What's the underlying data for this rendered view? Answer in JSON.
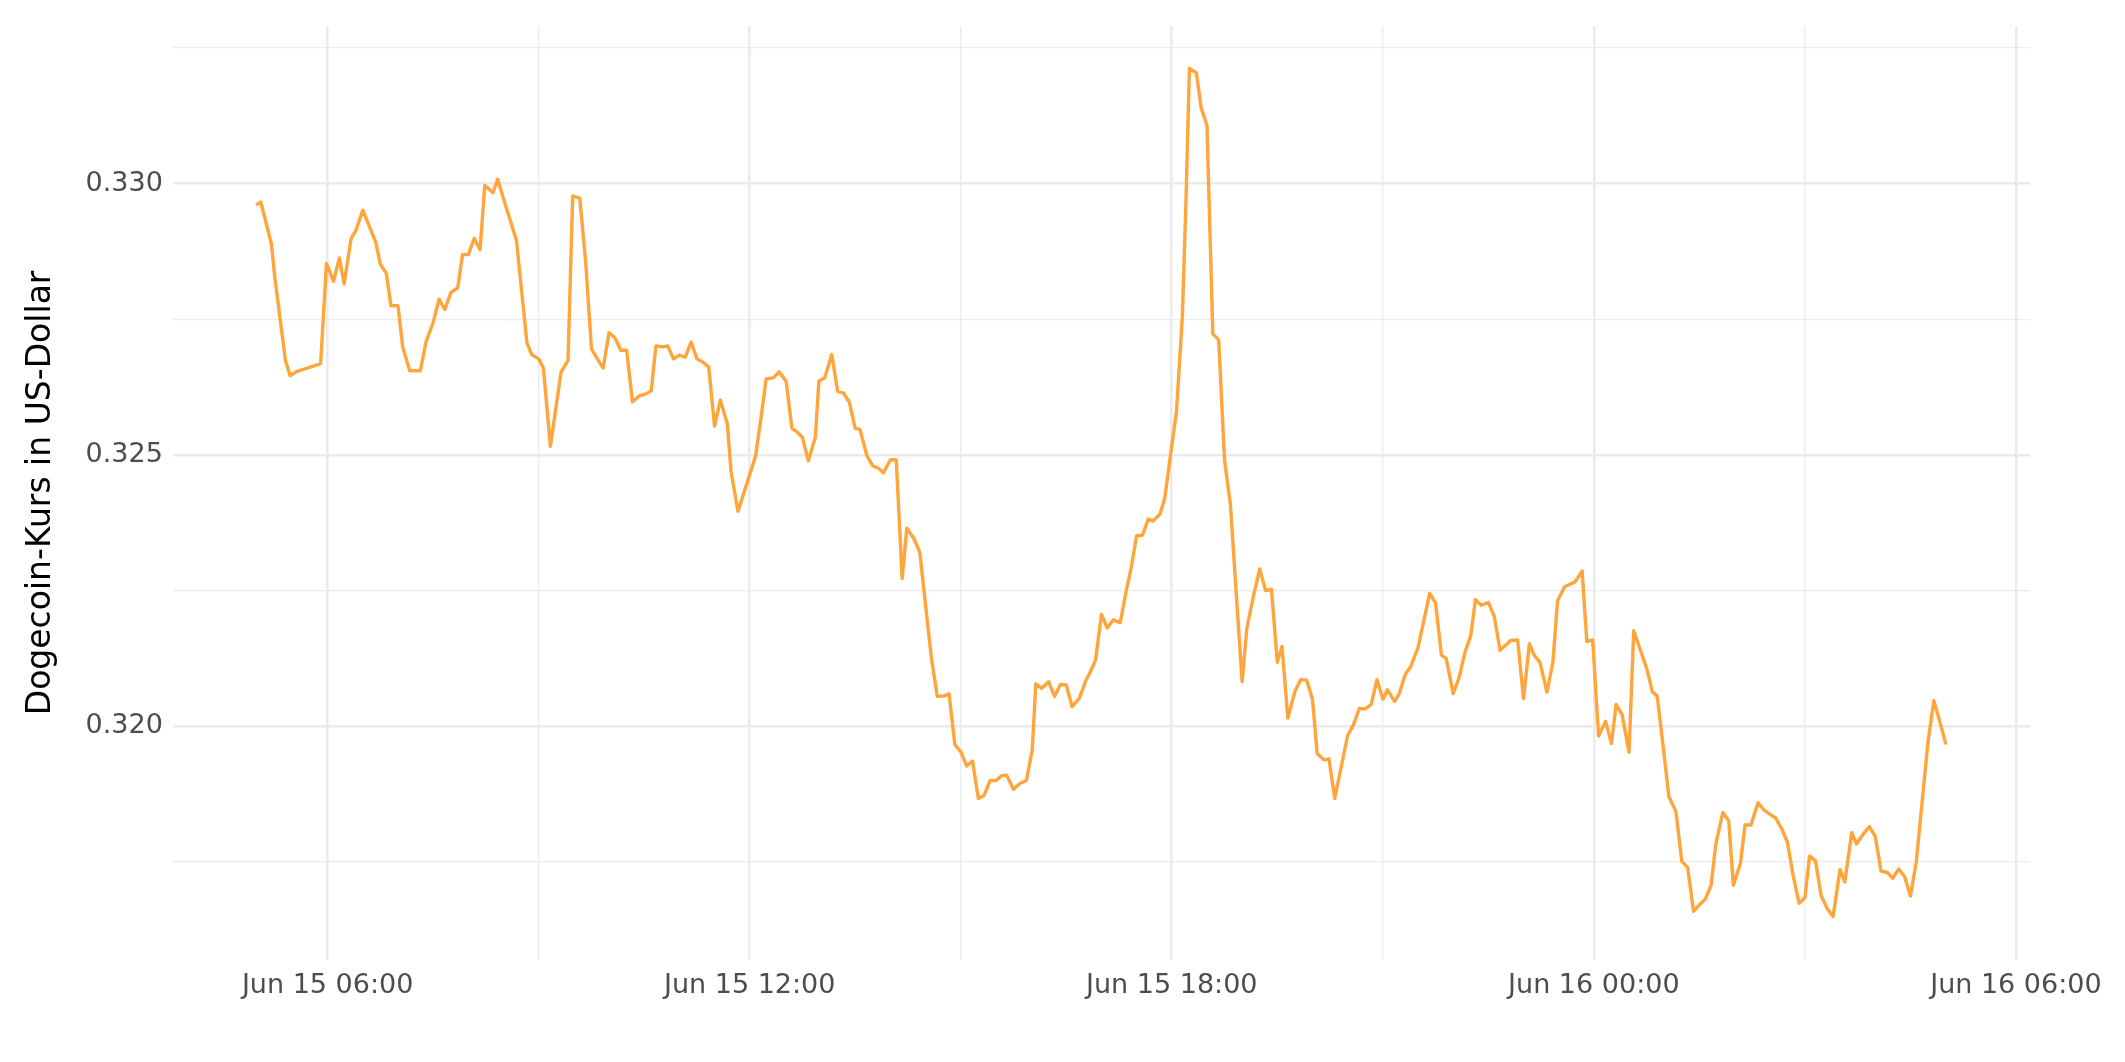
{
  "chart_data": {
    "type": "line",
    "ylabel": "Dogecoin-Kurs in US-Dollar",
    "color": "#ffa53b",
    "marker": "none",
    "line_style": "solid",
    "grid": true,
    "xlim": [
      "--06-15T03:48",
      "--06-16T06:12"
    ],
    "xticks": [
      {
        "value": "--06-15T06:00",
        "label": "Jun 15 06:00"
      },
      {
        "value": "--06-15T09:00",
        "label": null
      },
      {
        "value": "--06-15T12:00",
        "label": "Jun 15 12:00"
      },
      {
        "value": "--06-15T15:00",
        "label": null
      },
      {
        "value": "--06-15T18:00",
        "label": "Jun 15 18:00"
      },
      {
        "value": "--06-15T21:00",
        "label": null
      },
      {
        "value": "--06-16T00:00",
        "label": "Jun 16 00:00"
      },
      {
        "value": "--06-16T03:00",
        "label": null
      },
      {
        "value": "--06-16T06:00",
        "label": "Jun 16 06:00"
      }
    ],
    "ylim": [
      0.3157,
      0.3329
    ],
    "yticks": [
      {
        "value": 0.3175,
        "label": null
      },
      {
        "value": 0.32,
        "label": "0.320"
      },
      {
        "value": 0.3225,
        "label": null
      },
      0.325,
      {
        "value": 0.3275,
        "label": null
      },
      {
        "value": 0.33,
        "label": "0.330"
      },
      {
        "value": 0.3325,
        "label": null
      }
    ],
    "x": [
      "--06-15T05:00",
      "--06-15T05:03",
      "--06-15T05:12",
      "--06-15T05:15",
      "--06-15T05:24",
      "--06-15T05:28",
      "--06-15T05:34",
      "--06-15T05:54",
      "--06-15T05:59",
      "--06-15T06:05",
      "--06-15T06:10",
      "--06-15T06:14",
      "--06-15T06:20",
      "--06-15T06:24",
      "--06-15T06:30",
      "--06-15T06:35",
      "--06-15T06:41",
      "--06-15T06:45",
      "--06-15T06:50",
      "--06-15T06:54",
      "--06-15T07:00",
      "--06-15T07:04",
      "--06-15T07:10",
      "--06-15T07:19",
      "--06-15T07:24",
      "--06-15T07:30",
      "--06-15T07:35",
      "--06-15T07:40",
      "--06-15T07:45",
      "--06-15T07:51",
      "--06-15T07:55",
      "--06-15T08:00",
      "--06-15T08:05",
      "--06-15T08:10",
      "--06-15T08:14",
      "--06-15T08:21",
      "--06-15T08:25",
      "--06-15T08:33",
      "--06-15T08:41",
      "--06-15T08:50",
      "--06-15T08:54",
      "--06-15T09:00",
      "--06-15T09:04",
      "--06-15T09:10",
      "--06-15T09:19",
      "--06-15T09:25",
      "--06-15T09:29",
      "--06-15T09:35",
      "--06-15T09:40",
      "--06-15T09:45",
      "--06-15T09:50",
      "--06-15T09:55",
      "--06-15T10:00",
      "--06-15T10:05",
      "--06-15T10:10",
      "--06-15T10:15",
      "--06-15T10:20",
      "--06-15T10:26",
      "--06-15T10:31",
      "--06-15T10:36",
      "--06-15T10:40",
      "--06-15T10:46",
      "--06-15T10:50",
      "--06-15T10:55",
      "--06-15T11:00",
      "--06-15T11:05",
      "--06-15T11:10",
      "--06-15T11:15",
      "--06-15T11:20",
      "--06-15T11:25",
      "--06-15T11:30",
      "--06-15T11:35",
      "--06-15T11:41",
      "--06-15T11:44",
      "--06-15T11:50",
      "--06-15T12:05",
      "--06-15T12:10",
      "--06-15T12:14",
      "--06-15T12:20",
      "--06-15T12:25",
      "--06-15T12:31",
      "--06-15T12:36",
      "--06-15T12:40",
      "--06-15T12:45",
      "--06-15T12:50",
      "--06-15T12:56",
      "--06-15T12:59",
      "--06-15T13:04",
      "--06-15T13:10",
      "--06-15T13:15",
      "--06-15T13:20",
      "--06-15T13:25",
      "--06-15T13:30",
      "--06-15T13:34",
      "--06-15T13:40",
      "--06-15T13:45",
      "--06-15T13:50",
      "--06-15T13:54",
      "--06-15T14:00",
      "--06-15T14:05",
      "--06-15T14:10",
      "--06-15T14:14",
      "--06-15T14:20",
      "--06-15T14:25",
      "--06-15T14:35",
      "--06-15T14:40",
      "--06-15T14:46",
      "--06-15T14:50",
      "--06-15T14:55",
      "--06-15T15:00",
      "--06-15T15:05",
      "--06-15T15:10",
      "--06-15T15:15",
      "--06-15T15:20",
      "--06-15T15:25",
      "--06-15T15:30",
      "--06-15T15:35",
      "--06-15T15:39",
      "--06-15T15:45",
      "--06-15T15:50",
      "--06-15T15:56",
      "--06-15T16:01",
      "--06-15T16:04",
      "--06-15T16:09",
      "--06-15T16:15",
      "--06-15T16:20",
      "--06-15T16:25",
      "--06-15T16:30",
      "--06-15T16:35",
      "--06-15T16:41",
      "--06-15T16:47",
      "--06-15T16:49",
      "--06-15T16:55",
      "--06-15T17:00",
      "--06-15T17:05",
      "--06-15T17:10",
      "--06-15T17:16",
      "--06-15T17:21",
      "--06-15T17:25",
      "--06-15T17:30",
      "--06-15T17:35",
      "--06-15T17:40",
      "--06-15T17:44",
      "--06-15T17:50",
      "--06-15T17:54",
      "--06-15T17:58",
      "--06-15T18:04",
      "--06-15T18:09",
      "--06-15T18:12",
      "--06-15T18:15",
      "--06-15T18:21",
      "--06-15T18:25",
      "--06-15T18:30",
      "--06-15T18:35",
      "--06-15T18:40",
      "--06-15T18:45",
      "--06-15T18:50",
      "--06-15T18:55",
      "--06-15T19:00",
      "--06-15T19:04",
      "--06-15T19:10",
      "--06-15T19:15",
      "--06-15T19:20",
      "--06-15T19:25",
      "--06-15T19:30",
      "--06-15T19:34",
      "--06-15T19:39",
      "--06-15T19:45",
      "--06-15T19:50",
      "--06-15T19:55",
      "--06-15T20:00",
      "--06-15T20:04",
      "--06-15T20:10",
      "--06-15T20:14",
      "--06-15T20:19",
      "--06-15T20:30",
      "--06-15T20:35",
      "--06-15T20:40",
      "--06-15T20:45",
      "--06-15T20:50",
      "--06-15T20:55",
      "--06-15T21:00",
      "--06-15T21:04",
      "--06-15T21:10",
      "--06-15T21:14",
      "--06-15T21:19",
      "--06-15T21:24",
      "--06-15T21:30",
      "--06-15T21:34",
      "--06-15T21:40",
      "--06-15T21:45",
      "--06-15T21:50",
      "--06-15T21:54",
      "--06-15T22:00",
      "--06-15T22:05",
      "--06-15T22:10",
      "--06-15T22:15",
      "--06-15T22:19",
      "--06-15T22:24",
      "--06-15T22:30",
      "--06-15T22:35",
      "--06-15T22:40",
      "--06-15T22:47",
      "--06-15T22:49",
      "--06-15T22:55",
      "--06-15T23:00",
      "--06-15T23:05",
      "--06-15T23:09",
      "--06-15T23:14",
      "--06-15T23:20",
      "--06-15T23:25",
      "--06-15T23:29",
      "--06-15T23:35",
      "--06-15T23:44",
      "--06-15T23:50",
      "--06-15T23:54",
      "--06-15T23:59",
      "--06-16T00:04",
      "--06-16T00:10",
      "--06-16T00:15",
      "--06-16T00:19",
      "--06-16T00:24",
      "--06-16T00:30",
      "--06-16T00:34",
      "--06-16T00:45",
      "--06-16T00:50",
      "--06-16T00:54",
      "--06-16T00:59",
      "--06-16T01:04",
      "--06-16T01:10",
      "--06-16T01:15",
      "--06-16T01:20",
      "--06-16T01:25",
      "--06-16T01:30",
      "--06-16T01:35",
      "--06-16T01:40",
      "--06-16T01:44",
      "--06-16T01:50",
      "--06-16T01:55",
      "--06-16T01:59",
      "--06-16T02:05",
      "--06-16T02:09",
      "--06-16T02:14",
      "--06-16T02:20",
      "--06-16T02:25",
      "--06-16T02:30",
      "--06-16T02:35",
      "--06-16T02:40",
      "--06-16T02:45",
      "--06-16T02:50",
      "--06-16T02:55",
      "--06-16T03:00",
      "--06-16T03:04",
      "--06-16T03:09",
      "--06-16T03:14",
      "--06-16T03:19",
      "--06-16T03:24",
      "--06-16T03:30",
      "--06-16T03:34",
      "--06-16T03:40",
      "--06-16T03:44",
      "--06-16T03:50",
      "--06-16T03:55",
      "--06-16T04:00",
      "--06-16T04:05",
      "--06-16T04:10",
      "--06-16T04:15",
      "--06-16T04:20",
      "--06-16T04:25",
      "--06-16T04:30",
      "--06-16T04:35",
      "--06-16T04:41",
      "--06-16T04:45",
      "--06-16T04:50",
      "--06-16T04:55",
      "--06-16T05:00"
    ],
    "values": [
      0.32962,
      0.32966,
      0.32889,
      0.32826,
      0.32674,
      0.32646,
      0.32654,
      0.32668,
      0.32853,
      0.3282,
      0.32863,
      0.32815,
      0.32899,
      0.32913,
      0.32951,
      0.32924,
      0.32892,
      0.32851,
      0.32835,
      0.32775,
      0.32775,
      0.32699,
      0.32655,
      0.32655,
      0.32709,
      0.32744,
      0.32787,
      0.32768,
      0.32799,
      0.32808,
      0.32869,
      0.32869,
      0.32899,
      0.32878,
      0.32997,
      0.32983,
      0.33008,
      0.32951,
      0.32896,
      0.32706,
      0.32685,
      0.32677,
      0.3266,
      0.32516,
      0.32652,
      0.32674,
      0.32977,
      0.32973,
      0.32858,
      0.32696,
      0.32677,
      0.3266,
      0.32725,
      0.32716,
      0.32693,
      0.32693,
      0.32598,
      0.32609,
      0.32612,
      0.32618,
      0.32701,
      0.32699,
      0.32701,
      0.32677,
      0.32684,
      0.3268,
      0.32708,
      0.32677,
      0.32671,
      0.32662,
      0.32553,
      0.32601,
      0.32556,
      0.3247,
      0.32396,
      0.32498,
      0.32574,
      0.3264,
      0.32642,
      0.32653,
      0.32636,
      0.32549,
      0.32543,
      0.32532,
      0.32489,
      0.32533,
      0.32636,
      0.32642,
      0.32685,
      0.32617,
      0.32614,
      0.32597,
      0.32549,
      0.32547,
      0.32498,
      0.3248,
      0.32475,
      0.32467,
      0.32491,
      0.32491,
      0.32272,
      0.32365,
      0.32346,
      0.32321,
      0.32125,
      0.32055,
      0.32056,
      0.3206,
      0.31966,
      0.31953,
      0.31927,
      0.31936,
      0.31867,
      0.31873,
      0.319,
      0.319,
      0.31909,
      0.3191,
      0.31884,
      0.31894,
      0.319,
      0.31957,
      0.32078,
      0.3207,
      0.32082,
      0.32055,
      0.32077,
      0.32076,
      0.32036,
      0.32051,
      0.32086,
      0.32093,
      0.32122,
      0.32206,
      0.32181,
      0.32196,
      0.32191,
      0.32248,
      0.32288,
      0.32351,
      0.32352,
      0.32382,
      0.32378,
      0.32391,
      0.3242,
      0.32485,
      0.3258,
      0.32754,
      0.3296,
      0.33212,
      0.33204,
      0.3314,
      0.33107,
      0.32723,
      0.32712,
      0.3249,
      0.32409,
      0.32243,
      0.32082,
      0.32181,
      0.32243,
      0.3229,
      0.3225,
      0.32252,
      0.32118,
      0.32147,
      0.32015,
      0.32064,
      0.32086,
      0.32085,
      0.3205,
      0.3195,
      0.31938,
      0.3194,
      0.31867,
      0.31983,
      0.32003,
      0.32033,
      0.32032,
      0.3204,
      0.32086,
      0.3205,
      0.32067,
      0.32046,
      0.3206,
      0.32095,
      0.32111,
      0.32145,
      0.32185,
      0.32245,
      0.32227,
      0.32131,
      0.32125,
      0.3206,
      0.32089,
      0.32136,
      0.32167,
      0.32233,
      0.32223,
      0.32228,
      0.32203,
      0.3214,
      0.32154,
      0.32158,
      0.32159,
      0.32051,
      0.32152,
      0.32131,
      0.32118,
      0.32063,
      0.32117,
      0.32231,
      0.32257,
      0.32266,
      0.32286,
      0.32156,
      0.32159,
      0.31982,
      0.32009,
      0.31968,
      0.3204,
      0.32022,
      0.31952,
      0.32176,
      0.32107,
      0.32063,
      0.32056,
      0.31965,
      0.3187,
      0.31843,
      0.31751,
      0.3174,
      0.31659,
      0.31671,
      0.31681,
      0.31707,
      0.31783,
      0.31841,
      0.31826,
      0.31707,
      0.31747,
      0.31818,
      0.31818,
      0.31859,
      0.31846,
      0.31838,
      0.31831,
      0.31812,
      0.31787,
      0.31725,
      0.31674,
      0.31684,
      0.31761,
      0.31752,
      0.31687,
      0.31664,
      0.31649,
      0.31736,
      0.31713,
      0.31804,
      0.31783,
      0.31802,
      0.31815,
      0.31797,
      0.31733,
      0.31731,
      0.3172,
      0.31737,
      0.31723,
      0.31687,
      0.3175,
      0.31883,
      0.31971,
      0.32047,
      0.32009,
      0.31969
    ]
  }
}
